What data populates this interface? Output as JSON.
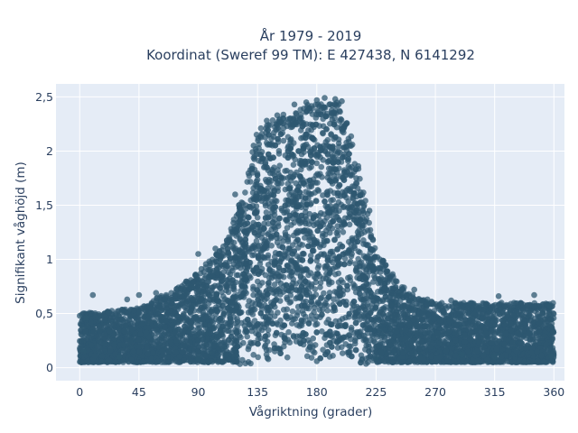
{
  "chart_data": {
    "type": "scatter",
    "title_lines": [
      "År 1979 - 2019",
      "Koordinat (Sweref 99 TM): E 427438, N 6141292"
    ],
    "xlabel": "Vågriktning (grader)",
    "ylabel": "Signifikant våghöjd (m)",
    "xlim": [
      -18,
      368
    ],
    "ylim": [
      -0.12,
      2.62
    ],
    "x_ticks": [
      0,
      45,
      90,
      135,
      180,
      225,
      270,
      315,
      360
    ],
    "x_tick_labels": [
      "0",
      "45",
      "90",
      "135",
      "180",
      "225",
      "270",
      "315",
      "360"
    ],
    "y_ticks": [
      0,
      0.5,
      1,
      1.5,
      2,
      2.5
    ],
    "y_tick_labels": [
      "0",
      "0,5",
      "1",
      "1,5",
      "2",
      "2,5"
    ],
    "grid": true,
    "marker_color": "#2e5870",
    "plot_background": "#e5ecf6",
    "envelope": {
      "description_points": "upper limit of scatter cloud (direction, max wave height)",
      "direction": [
        0,
        45,
        70,
        90,
        110,
        125,
        135,
        150,
        165,
        180,
        195,
        205,
        215,
        225,
        240,
        255,
        270,
        315,
        360
      ],
      "max_height": [
        0.5,
        0.55,
        0.72,
        0.88,
        1.15,
        1.65,
        2.2,
        2.32,
        2.4,
        2.45,
        2.5,
        2.2,
        1.7,
        1.1,
        0.82,
        0.65,
        0.6,
        0.6,
        0.6
      ]
    },
    "points": [
      [
        10,
        0.67
      ],
      [
        36,
        0.63
      ],
      [
        45,
        0.67
      ],
      [
        58,
        0.69
      ],
      [
        75,
        0.74
      ],
      [
        88,
        0.86
      ],
      [
        90,
        1.05
      ],
      [
        103,
        1.1
      ],
      [
        118,
        1.6
      ],
      [
        132,
        2.05
      ],
      [
        142,
        2.28
      ],
      [
        150,
        2.33
      ],
      [
        163,
        2.43
      ],
      [
        172,
        2.45
      ],
      [
        180,
        2.47
      ],
      [
        186,
        2.49
      ],
      [
        194,
        2.48
      ],
      [
        199,
        2.46
      ],
      [
        205,
        2.05
      ],
      [
        210,
        1.75
      ],
      [
        220,
        1.45
      ],
      [
        226,
        1.02
      ],
      [
        240,
        0.8
      ],
      [
        254,
        0.72
      ],
      [
        264,
        0.63
      ],
      [
        282,
        0.62
      ],
      [
        318,
        0.66
      ],
      [
        345,
        0.67
      ],
      [
        357,
        0.57
      ],
      [
        0,
        0.48
      ],
      [
        5,
        0.46
      ],
      [
        3,
        0.15
      ],
      [
        358,
        0.11
      ],
      [
        290,
        0.12
      ],
      [
        30,
        0.1
      ],
      [
        90,
        0.09
      ],
      [
        180,
        0.06
      ],
      [
        225,
        0.09
      ],
      [
        315,
        0.1
      ]
    ]
  }
}
